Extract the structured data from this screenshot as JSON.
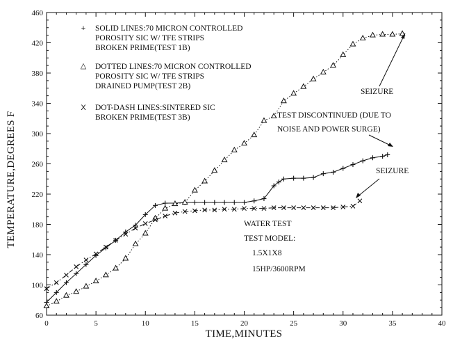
{
  "chart_data": {
    "type": "line",
    "xlabel": "TIME,MINUTES",
    "ylabel": "TEMPERATURE,DEGREES F",
    "xlim": [
      0,
      40
    ],
    "ylim": [
      60,
      460
    ],
    "xticks": [
      0,
      5,
      10,
      15,
      20,
      25,
      30,
      35,
      40
    ],
    "yticks": [
      60,
      100,
      140,
      180,
      220,
      260,
      300,
      340,
      380,
      420,
      460
    ],
    "xtick_labels": [
      "0",
      "5",
      "10",
      "15",
      "20",
      "25",
      "30",
      "35",
      "40"
    ],
    "ytick_labels": [
      "60",
      "100",
      "140",
      "180",
      "220",
      "260",
      "300",
      "340",
      "380",
      "420",
      "460"
    ],
    "grid": false,
    "series": [
      {
        "marker": "+",
        "style": "solid",
        "x": [
          0,
          1,
          2,
          3,
          4,
          5,
          6,
          7,
          8,
          9,
          10,
          11,
          12,
          13,
          14,
          15,
          16,
          17,
          18,
          19,
          20,
          21,
          22,
          23,
          23.5,
          24,
          25,
          26,
          27,
          28,
          29,
          30,
          31,
          32,
          33,
          34,
          34.5
        ],
        "values": [
          77,
          90,
          103,
          115,
          127,
          139,
          149,
          159,
          170,
          179,
          193,
          205,
          208,
          208,
          209,
          209,
          209,
          209,
          209,
          209,
          209,
          211,
          214,
          231,
          236,
          240,
          241,
          241,
          242,
          247,
          249,
          254,
          259,
          264,
          268,
          270,
          272
        ]
      },
      {
        "marker": "triangle",
        "style": "dotted",
        "x": [
          0,
          1,
          2,
          3,
          4,
          5,
          6,
          7,
          8,
          9,
          10,
          11,
          12,
          13,
          14,
          15,
          16,
          17,
          18,
          19,
          20,
          21,
          22,
          23,
          24,
          25,
          26,
          27,
          28,
          29,
          30,
          31,
          32,
          33,
          34,
          35,
          36
        ],
        "values": [
          72,
          78,
          86,
          91,
          98,
          105,
          113,
          122,
          135,
          154,
          168,
          188,
          201,
          207,
          209,
          225,
          237,
          251,
          265,
          278,
          287,
          298,
          317,
          323,
          343,
          353,
          362,
          372,
          381,
          390,
          404,
          418,
          426,
          430,
          431,
          431,
          432
        ]
      },
      {
        "marker": "x",
        "style": "dash-dot",
        "x": [
          0,
          1,
          2,
          3,
          4,
          5,
          6,
          7,
          8,
          9,
          10,
          11,
          12,
          13,
          14,
          15,
          16,
          17,
          18,
          19,
          20,
          21,
          22,
          23,
          24,
          25,
          26,
          27,
          28,
          29,
          30,
          31,
          31.7
        ],
        "values": [
          95,
          103,
          113,
          124,
          133,
          141,
          150,
          159,
          167,
          175,
          181,
          186,
          191,
          195,
          197,
          198,
          199,
          199,
          200,
          200,
          201,
          201,
          201,
          202,
          202,
          202,
          202,
          202,
          202,
          202,
          203,
          204,
          211
        ]
      }
    ]
  },
  "legend": {
    "entries": [
      {
        "symbol": "+",
        "lines": [
          "SOLID LINES:70 MICRON CONTROLLED",
          "POROSITY SIC W/ TFE STRIPS",
          "BROKEN PRIME(TEST 1B)"
        ]
      },
      {
        "symbol": "△",
        "lines": [
          "DOTTED LINES:70 MICRON CONTROLLED",
          "POROSITY SIC W/ TFE STRIPS",
          "DRAINED PUMP(TEST 2B)"
        ]
      },
      {
        "symbol": "X",
        "lines": [
          "DOT-DASH LINES:SINTERED SIC",
          "BROKEN PRIME(TEST 3B)"
        ]
      }
    ]
  },
  "annotations": {
    "seizure_top": "SEIZURE",
    "discontinued_line1": "TEST DISCONTINUED (DUE TO",
    "discontinued_line2": "NOISE AND POWER SURGE)",
    "seizure_mid": "SEIZURE",
    "test_lines": [
      "WATER TEST",
      "TEST MODEL:",
      "1.5X1X8",
      "15HP/3600RPM"
    ]
  }
}
